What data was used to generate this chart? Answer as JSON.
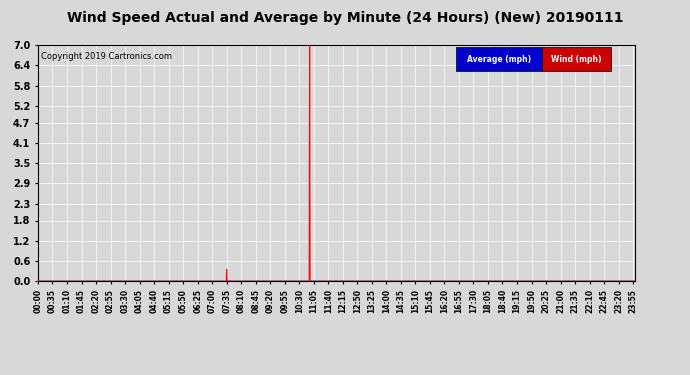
{
  "title": "Wind Speed Actual and Average by Minute (24 Hours) (New) 20190111",
  "copyright": "Copyright 2019 Cartronics.com",
  "yticks": [
    0.0,
    0.6,
    1.2,
    1.8,
    2.3,
    2.9,
    3.5,
    4.1,
    4.7,
    5.2,
    5.8,
    6.4,
    7.0
  ],
  "ylim": [
    0.0,
    7.0
  ],
  "bg_color": "#d8d8d8",
  "plot_bg_color": "#d8d8d8",
  "wind_color": "#ff0000",
  "avg_color": "#0000ff",
  "grid_color": "#ffffff",
  "legend_avg_bg": "#0000cc",
  "legend_wind_bg": "#cc0000",
  "total_minutes": 1440,
  "spike1_minute": 455,
  "spike1_value": 0.35,
  "spike2_minute": 655,
  "spike2_value": 7.0,
  "xtick_minutes": [
    0,
    35,
    70,
    105,
    140,
    175,
    210,
    245,
    280,
    315,
    350,
    385,
    420,
    455,
    490,
    525,
    560,
    595,
    630,
    665,
    700,
    735,
    770,
    805,
    840,
    875,
    910,
    945,
    980,
    1015,
    1050,
    1085,
    1120,
    1155,
    1190,
    1225,
    1260,
    1295,
    1330,
    1365,
    1400,
    1435
  ],
  "xtick_labels": [
    "00:00",
    "00:35",
    "01:10",
    "01:45",
    "02:20",
    "02:55",
    "03:30",
    "04:05",
    "04:40",
    "05:15",
    "05:50",
    "06:25",
    "07:00",
    "07:35",
    "08:10",
    "08:45",
    "09:20",
    "09:55",
    "10:30",
    "11:05",
    "11:40",
    "12:15",
    "12:50",
    "13:25",
    "14:00",
    "14:35",
    "15:10",
    "15:45",
    "16:20",
    "16:55",
    "17:30",
    "18:05",
    "18:40",
    "19:15",
    "19:50",
    "20:25",
    "21:00",
    "21:35",
    "22:10",
    "22:45",
    "23:20",
    "23:55"
  ]
}
